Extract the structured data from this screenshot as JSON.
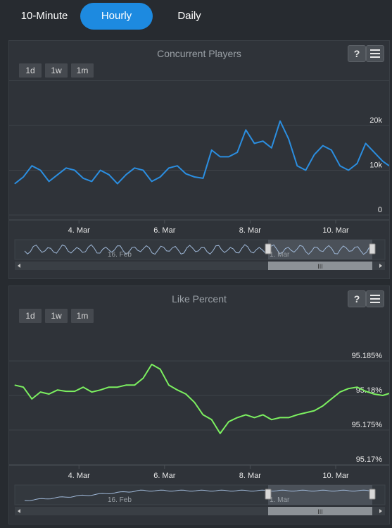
{
  "tabs": [
    {
      "label": "10-Minute",
      "active": false
    },
    {
      "label": "Hourly",
      "active": true
    },
    {
      "label": "Daily",
      "active": false
    }
  ],
  "colors": {
    "accent": "#1d8ae0",
    "players_line": "#2b8ee0",
    "like_line": "#7cf060",
    "navigator_line": "#9fb8d8",
    "background": "#272b30",
    "panel": "#2f3339"
  },
  "panels": [
    {
      "help_label": "?",
      "menu_icon": "menu-icon",
      "range_buttons": [
        "1d",
        "1w",
        "1m"
      ],
      "navigator": {
        "labels": [
          "16. Feb",
          "1. Mar"
        ],
        "grip": "III"
      }
    },
    {
      "help_label": "?",
      "menu_icon": "menu-icon",
      "range_buttons": [
        "1d",
        "1w",
        "1m"
      ],
      "navigator": {
        "labels": [
          "16. Feb",
          "1. Mar"
        ],
        "grip": "III"
      }
    }
  ],
  "chart_data": [
    {
      "type": "line",
      "title": "Concurrent Players",
      "x_tick_labels": [
        "4. Mar",
        "6. Mar",
        "8. Mar",
        "10. Mar"
      ],
      "x_range": [
        "2. Mar 12:00",
        "11. Mar 06:00"
      ],
      "y_tick_labels": [
        "0",
        "10k",
        "20k"
      ],
      "ylim": [
        0,
        20000
      ],
      "grid": true,
      "series": [
        {
          "x": [
            "2.5",
            "2.7",
            "2.9",
            "3.1",
            "3.3",
            "3.5",
            "3.7",
            "3.9",
            "4.1",
            "4.3",
            "4.5",
            "4.7",
            "4.9",
            "5.1",
            "5.3",
            "5.5",
            "5.7",
            "5.9",
            "6.1",
            "6.3",
            "6.5",
            "6.7",
            "6.9",
            "7.1",
            "7.3",
            "7.5",
            "7.7",
            "7.9",
            "8.1",
            "8.3",
            "8.5",
            "8.7",
            "8.9",
            "9.1",
            "9.3",
            "9.5",
            "9.7",
            "9.9",
            "10.1",
            "10.3",
            "10.5",
            "10.7",
            "10.9",
            "11.1",
            "11.25"
          ],
          "values": [
            7000,
            8500,
            11000,
            10000,
            7500,
            9000,
            10500,
            10000,
            8200,
            7500,
            10000,
            9000,
            7000,
            9000,
            10500,
            10000,
            7500,
            8500,
            10500,
            11000,
            9200,
            8500,
            8200,
            14500,
            13000,
            13000,
            14000,
            19000,
            16000,
            16500,
            15000,
            21000,
            17000,
            11000,
            10000,
            13500,
            15500,
            14500,
            11000,
            10000,
            11500,
            16000,
            14000,
            12000,
            11000
          ]
        }
      ]
    },
    {
      "type": "line",
      "title": "Like Percent",
      "x_tick_labels": [
        "4. Mar",
        "6. Mar",
        "8. Mar",
        "10. Mar"
      ],
      "x_range": [
        "2. Mar 12:00",
        "11. Mar 06:00"
      ],
      "y_tick_labels": [
        "95.17%",
        "95.175%",
        "95.18%",
        "95.185%"
      ],
      "ylim": [
        95.17,
        95.185
      ],
      "grid": true,
      "series": [
        {
          "x": [
            "2.5",
            "2.7",
            "2.9",
            "3.1",
            "3.3",
            "3.5",
            "3.7",
            "3.9",
            "4.1",
            "4.3",
            "4.5",
            "4.7",
            "4.9",
            "5.1",
            "5.3",
            "5.5",
            "5.7",
            "5.9",
            "6.1",
            "6.3",
            "6.5",
            "6.7",
            "6.9",
            "7.1",
            "7.3",
            "7.5",
            "7.7",
            "7.9",
            "8.1",
            "8.3",
            "8.5",
            "8.7",
            "8.9",
            "9.1",
            "9.3",
            "9.5",
            "9.7",
            "9.9",
            "10.1",
            "10.3",
            "10.5",
            "10.7",
            "10.9",
            "11.1",
            "11.25"
          ],
          "values": [
            95.1815,
            95.1812,
            95.1795,
            95.1805,
            95.1802,
            95.1808,
            95.1806,
            95.1806,
            95.1812,
            95.1805,
            95.1808,
            95.1812,
            95.1812,
            95.1815,
            95.1815,
            95.1825,
            95.1845,
            95.1838,
            95.1815,
            95.1808,
            95.1802,
            95.179,
            95.1772,
            95.1765,
            95.1745,
            95.1762,
            95.1768,
            95.1772,
            95.1768,
            95.1772,
            95.1765,
            95.1768,
            95.1768,
            95.1772,
            95.1775,
            95.1778,
            95.1785,
            95.1795,
            95.1805,
            95.181,
            95.1812,
            95.1806,
            95.1802,
            95.18,
            95.1803
          ]
        }
      ]
    }
  ]
}
